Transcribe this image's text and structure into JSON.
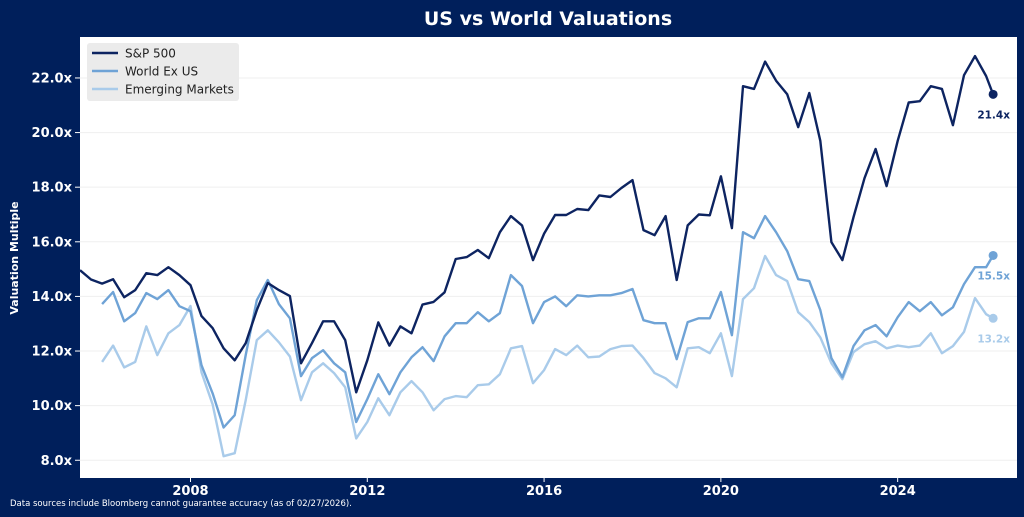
{
  "chart_data": {
    "type": "line",
    "title": "US vs World Valuations",
    "xlabel": "",
    "ylabel": "Valuation Multiple",
    "xlim": [
      2005.5,
      2026.7
    ],
    "ylim": [
      7.35,
      23.5
    ],
    "x_ticks": [
      2008,
      2012,
      2016,
      2020,
      2024
    ],
    "x_tick_labels": [
      "2008",
      "2012",
      "2016",
      "2020",
      "2024"
    ],
    "y_ticks": [
      8,
      10,
      12,
      14,
      16,
      18,
      20,
      22
    ],
    "y_tick_labels": [
      "8.0x",
      "10.0x",
      "12.0x",
      "14.0x",
      "16.0x",
      "18.0x",
      "20.0x",
      "22.0x"
    ],
    "grid": "horizontal",
    "legend_position": "top-left",
    "x": [
      2005.5,
      2005.75,
      2006,
      2006.25,
      2006.5,
      2006.75,
      2007,
      2007.25,
      2007.5,
      2007.75,
      2008,
      2008.25,
      2008.5,
      2008.75,
      2009,
      2009.25,
      2009.5,
      2009.75,
      2010,
      2010.25,
      2010.5,
      2010.75,
      2011,
      2011.25,
      2011.5,
      2011.75,
      2012,
      2012.25,
      2012.5,
      2012.75,
      2013,
      2013.25,
      2013.5,
      2013.75,
      2014,
      2014.25,
      2014.5,
      2014.75,
      2015,
      2015.25,
      2015.5,
      2015.75,
      2016,
      2016.25,
      2016.5,
      2016.75,
      2017,
      2017.25,
      2017.5,
      2017.75,
      2018,
      2018.25,
      2018.5,
      2018.75,
      2019,
      2019.25,
      2019.5,
      2019.75,
      2020,
      2020.25,
      2020.5,
      2020.75,
      2021,
      2021.25,
      2021.5,
      2021.75,
      2022,
      2022.25,
      2022.5,
      2022.75,
      2023,
      2023.25,
      2023.5,
      2023.75,
      2024,
      2024.25,
      2024.5,
      2024.75,
      2025,
      2025.25,
      2025.5,
      2025.75,
      2026,
      2026.16
    ],
    "series": [
      {
        "name": "S&P 500",
        "color": "#0d2461",
        "end_label": "21.4x",
        "values": [
          14.96,
          14.62,
          14.47,
          14.63,
          13.97,
          14.23,
          14.85,
          14.78,
          15.07,
          14.78,
          14.41,
          13.28,
          12.84,
          12.1,
          11.66,
          12.29,
          13.5,
          14.49,
          14.23,
          14.01,
          11.55,
          12.29,
          13.09,
          13.09,
          12.4,
          10.49,
          11.66,
          13.05,
          12.2,
          12.9,
          12.65,
          13.7,
          13.8,
          14.15,
          15.37,
          15.44,
          15.7,
          15.4,
          16.35,
          16.94,
          16.6,
          15.33,
          16.3,
          16.98,
          16.98,
          17.2,
          17.16,
          17.7,
          17.64,
          17.97,
          18.26,
          16.43,
          16.24,
          16.94,
          14.6,
          16.6,
          17.0,
          16.97,
          18.4,
          16.5,
          21.7,
          21.6,
          22.6,
          21.9,
          21.4,
          20.2,
          21.45,
          19.7,
          15.99,
          15.33,
          16.9,
          18.33,
          19.4,
          18.04,
          19.7,
          21.1,
          21.15,
          21.7,
          21.6,
          20.27,
          22.1,
          22.8,
          22.07,
          21.4
        ]
      },
      {
        "name": "World Ex US",
        "color": "#6fa3d6",
        "end_label": "15.5x",
        "values": [
          null,
          null,
          13.72,
          14.16,
          13.09,
          13.39,
          14.12,
          13.9,
          14.23,
          13.64,
          13.46,
          11.48,
          10.45,
          9.2,
          9.65,
          11.85,
          13.86,
          14.6,
          13.72,
          13.2,
          11.08,
          11.74,
          12.03,
          11.55,
          11.22,
          9.4,
          10.24,
          11.15,
          10.42,
          11.22,
          11.77,
          12.14,
          11.63,
          12.54,
          13.02,
          13.02,
          13.42,
          13.09,
          13.39,
          14.78,
          14.38,
          13.02,
          13.79,
          14.0,
          13.64,
          14.04,
          14.0,
          14.04,
          14.04,
          14.12,
          14.27,
          13.13,
          13.02,
          13.02,
          11.7,
          13.06,
          13.2,
          13.2,
          14.16,
          12.58,
          16.35,
          16.13,
          16.94,
          16.35,
          15.66,
          14.63,
          14.56,
          13.5,
          11.74,
          11.04,
          12.18,
          12.76,
          12.95,
          12.54,
          13.24,
          13.79,
          13.46,
          13.79,
          13.31,
          13.6,
          14.45,
          15.07,
          15.07,
          15.5
        ]
      },
      {
        "name": "Emerging Markets",
        "color": "#a9cbea",
        "end_label": "13.2x",
        "values": [
          null,
          null,
          11.6,
          12.2,
          11.4,
          11.6,
          12.9,
          11.85,
          12.65,
          12.95,
          13.65,
          11.22,
          10.05,
          8.15,
          8.26,
          10.2,
          12.4,
          12.76,
          12.32,
          11.8,
          10.2,
          11.22,
          11.55,
          11.19,
          10.67,
          8.8,
          9.4,
          10.27,
          9.65,
          10.49,
          10.9,
          10.49,
          9.83,
          10.24,
          10.35,
          10.31,
          10.75,
          10.78,
          11.15,
          12.1,
          12.18,
          10.82,
          11.3,
          12.07,
          11.85,
          12.2,
          11.77,
          11.8,
          12.07,
          12.18,
          12.2,
          11.74,
          11.19,
          11.0,
          10.67,
          12.1,
          12.14,
          11.92,
          12.65,
          11.08,
          13.9,
          14.3,
          15.48,
          14.78,
          14.56,
          13.42,
          13.06,
          12.5,
          11.55,
          10.97,
          11.96,
          12.25,
          12.36,
          12.1,
          12.2,
          12.14,
          12.2,
          12.65,
          11.92,
          12.18,
          12.7,
          13.94,
          13.35,
          13.2
        ]
      }
    ],
    "footnote": "Data sources include Bloomberg cannot guarantee accuracy (as of 02/27/2026)."
  },
  "colors": {
    "background": "#001f5b",
    "plot_background": "#ffffff",
    "grid": "#efefef"
  }
}
